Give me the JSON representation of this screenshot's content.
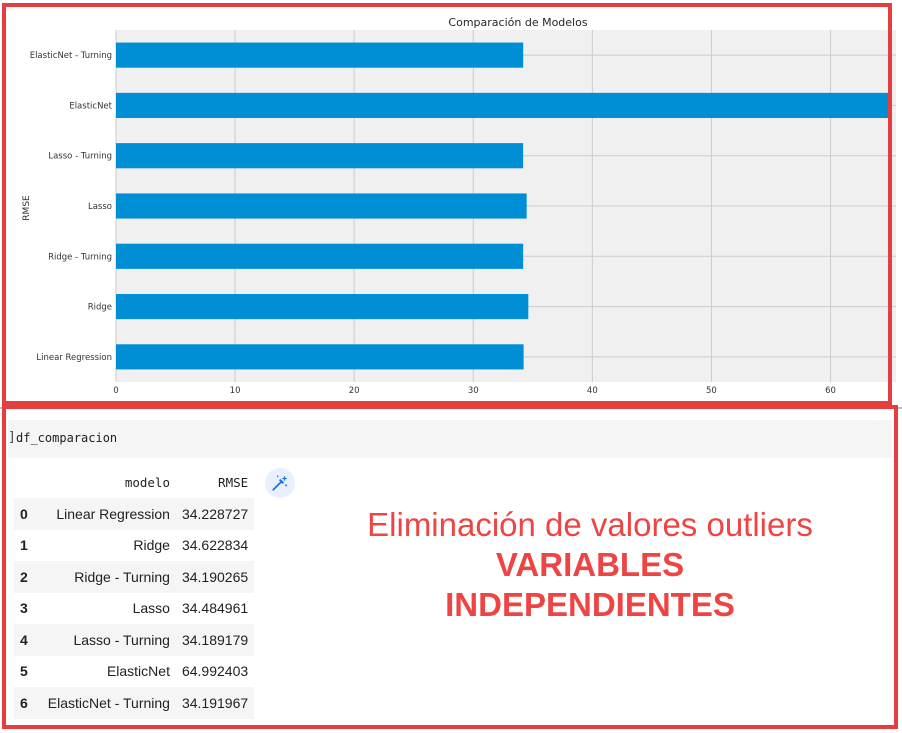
{
  "chart_data": {
    "type": "bar",
    "orientation": "horizontal",
    "title": "Comparación de Modelos",
    "ylabel": "RMSE",
    "xlabel": "",
    "categories": [
      "Linear Regression",
      "Ridge",
      "Ridge - Turning",
      "Lasso",
      "Lasso - Turning",
      "ElasticNet",
      "ElasticNet - Turning"
    ],
    "values": [
      34.228727,
      34.622834,
      34.190265,
      34.484961,
      34.189179,
      64.992403,
      34.191967
    ],
    "xlim": [
      0,
      65.5
    ],
    "xticks": [
      0,
      10,
      20,
      30,
      40,
      50,
      60
    ],
    "grid": true,
    "bar_color": "#008fd5",
    "background_color": "#f0f0f0"
  },
  "code_cell": {
    "bracket": "]",
    "code": "df_comparacion"
  },
  "dataframe": {
    "columns": [
      "modelo",
      "RMSE"
    ],
    "rows": [
      {
        "index": "0",
        "modelo": "Linear Regression",
        "rmse": "34.228727"
      },
      {
        "index": "1",
        "modelo": "Ridge",
        "rmse": "34.622834"
      },
      {
        "index": "2",
        "modelo": "Ridge - Turning",
        "rmse": "34.190265"
      },
      {
        "index": "3",
        "modelo": "Lasso",
        "rmse": "34.484961"
      },
      {
        "index": "4",
        "modelo": "Lasso - Turning",
        "rmse": "34.189179"
      },
      {
        "index": "5",
        "modelo": "ElasticNet",
        "rmse": "64.992403"
      },
      {
        "index": "6",
        "modelo": "ElasticNet - Turning",
        "rmse": "34.191967"
      }
    ]
  },
  "icons": {
    "suggest": "magic-wand-icon"
  },
  "annotation": {
    "line1": "Eliminación de valores outliers",
    "line2": "VARIABLES",
    "line3": "INDEPENDIENTES"
  },
  "colors": {
    "annotation": "#ef4444",
    "frame": "#e53e3e"
  }
}
